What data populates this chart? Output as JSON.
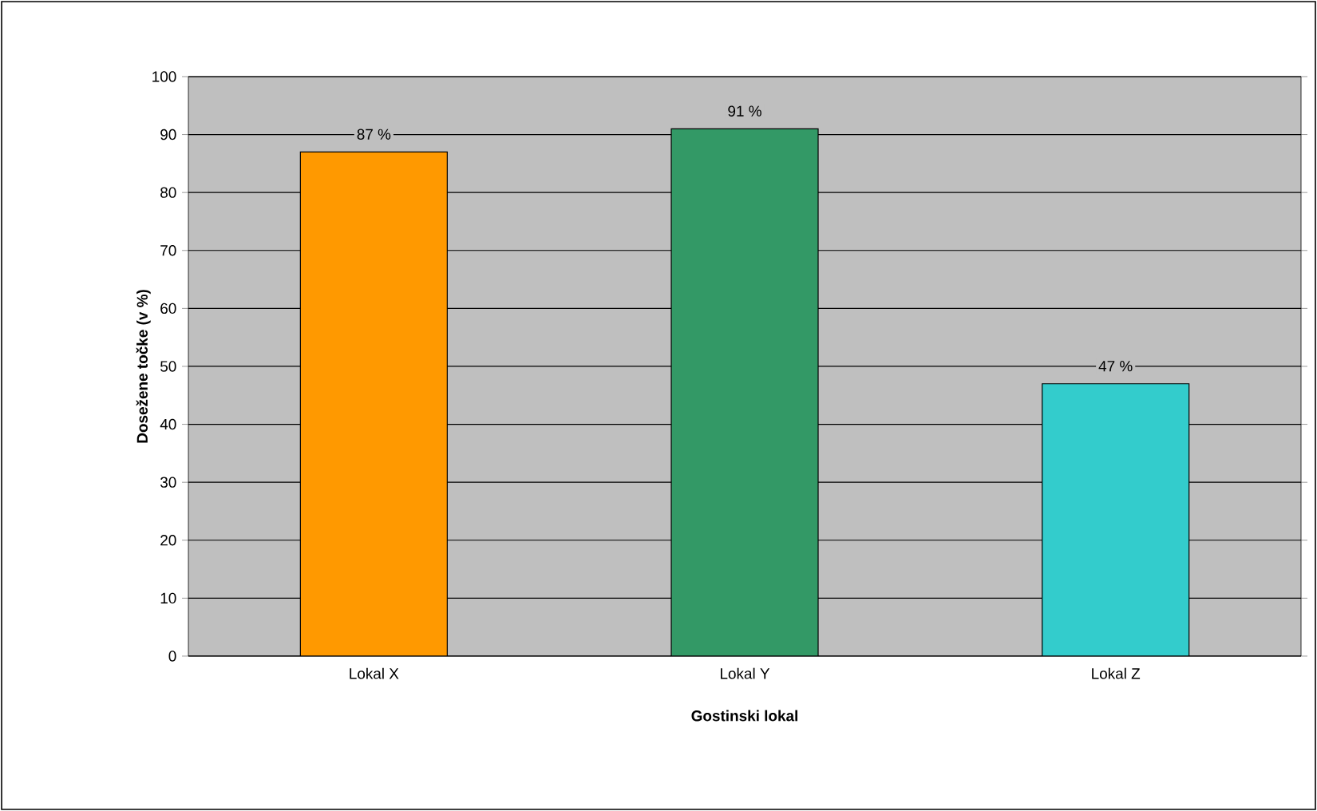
{
  "chart_data": {
    "type": "bar",
    "xlabel": "Gostinski lokal",
    "ylabel": "Dosežene točke (v %)",
    "categories": [
      "Lokal X",
      "Lokal Y",
      "Lokal Z"
    ],
    "values": [
      87,
      91,
      47
    ],
    "colors": [
      "#ff9900",
      "#339966",
      "#33cccc"
    ],
    "value_labels": [
      "87 %",
      "91 %",
      "47 %"
    ],
    "ylim": [
      0,
      100
    ],
    "yticks": [
      0,
      10,
      20,
      30,
      40,
      50,
      60,
      70,
      80,
      90,
      100
    ],
    "grid": "y"
  }
}
